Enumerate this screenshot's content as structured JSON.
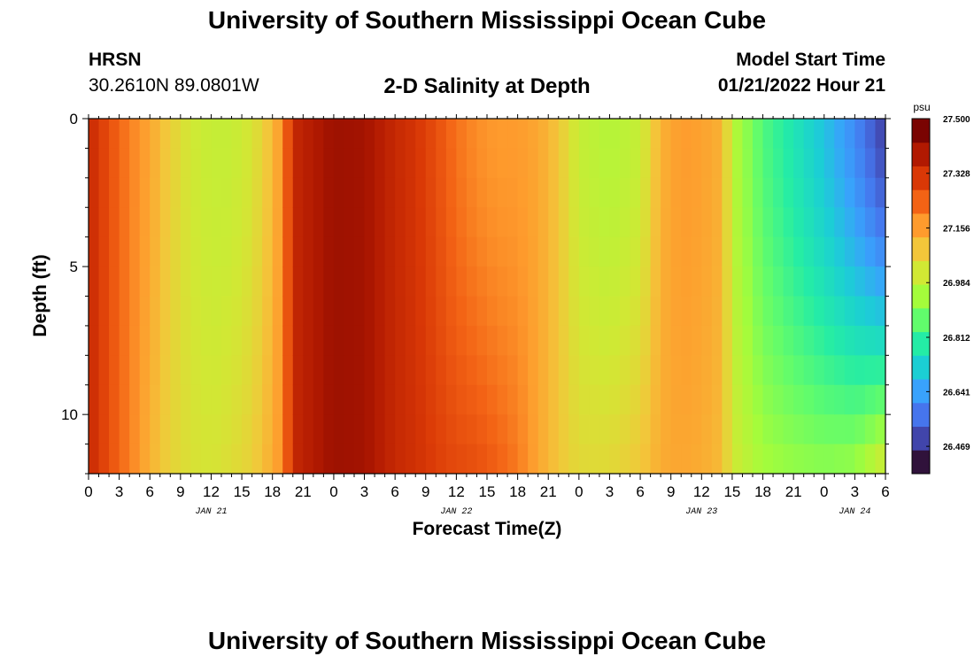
{
  "page_title": "University of Southern Mississippi Ocean Cube",
  "station": {
    "id": "HRSN",
    "coords": "30.2610N  89.0801W"
  },
  "model_start": {
    "label": "Model Start Time",
    "value": "01/21/2022 Hour 21"
  },
  "chart_data": {
    "type": "heatmap",
    "title": "2-D Salinity at Depth",
    "xlabel": "Forecast Time(Z)",
    "ylabel": "Depth (ft)",
    "x_tick_labels": [
      "0",
      "3",
      "6",
      "9",
      "12",
      "15",
      "18",
      "21",
      "0",
      "3",
      "6",
      "9",
      "12",
      "15",
      "18",
      "21",
      "0",
      "3",
      "6",
      "9",
      "12",
      "15",
      "18",
      "21",
      "0",
      "3",
      "6"
    ],
    "date_labels": [
      {
        "label": "JAN 21",
        "hour_index": 12
      },
      {
        "label": "JAN 22",
        "hour_index": 36
      },
      {
        "label": "JAN 23",
        "hour_index": 60
      },
      {
        "label": "JAN 24",
        "hour_index": 75
      }
    ],
    "hours_total": 78,
    "y_tick_labels": [
      "0",
      "5",
      "10"
    ],
    "ylim": [
      0,
      12
    ],
    "y_inverted": true,
    "colorbar": {
      "unit": "psu",
      "min": 26.383,
      "max": 27.5,
      "tick_labels": [
        "27.500",
        "27.328",
        "27.156",
        "26.984",
        "26.812",
        "26.641",
        "26.469"
      ],
      "colors": [
        "#30123b",
        "#4145ab",
        "#4675ed",
        "#39a2fc",
        "#1bcfd4",
        "#24eca6",
        "#61fc6c",
        "#a4fc3b",
        "#d1e834",
        "#f3c63a",
        "#fe9b2d",
        "#f36315",
        "#d93806",
        "#b11901",
        "#7a0402"
      ]
    },
    "columns": [
      {
        "h": 0,
        "top": 27.38,
        "bottom": 27.38
      },
      {
        "h": 1,
        "top": 27.34,
        "bottom": 27.34
      },
      {
        "h": 2,
        "top": 27.3,
        "bottom": 27.3
      },
      {
        "h": 3,
        "top": 27.26,
        "bottom": 27.26
      },
      {
        "h": 4,
        "top": 27.22,
        "bottom": 27.22
      },
      {
        "h": 5,
        "top": 27.19,
        "bottom": 27.18
      },
      {
        "h": 6,
        "top": 27.16,
        "bottom": 27.14
      },
      {
        "h": 8,
        "top": 27.08,
        "bottom": 27.07
      },
      {
        "h": 10,
        "top": 27.02,
        "bottom": 27.04
      },
      {
        "h": 12,
        "top": 27.0,
        "bottom": 27.03
      },
      {
        "h": 14,
        "top": 27.0,
        "bottom": 27.05
      },
      {
        "h": 16,
        "top": 27.03,
        "bottom": 27.08
      },
      {
        "h": 18,
        "top": 27.12,
        "bottom": 27.15
      },
      {
        "h": 19,
        "top": 27.2,
        "bottom": 27.2
      },
      {
        "h": 20,
        "top": 27.38,
        "bottom": 27.38
      },
      {
        "h": 21,
        "top": 27.4,
        "bottom": 27.4
      },
      {
        "h": 24,
        "top": 27.45,
        "bottom": 27.45
      },
      {
        "h": 27,
        "top": 27.44,
        "bottom": 27.44
      },
      {
        "h": 30,
        "top": 27.38,
        "bottom": 27.38
      },
      {
        "h": 32,
        "top": 27.35,
        "bottom": 27.36
      },
      {
        "h": 34,
        "top": 27.3,
        "bottom": 27.33
      },
      {
        "h": 36,
        "top": 27.24,
        "bottom": 27.31
      },
      {
        "h": 38,
        "top": 27.2,
        "bottom": 27.3
      },
      {
        "h": 40,
        "top": 27.18,
        "bottom": 27.27
      },
      {
        "h": 42,
        "top": 27.18,
        "bottom": 27.23
      },
      {
        "h": 44,
        "top": 27.16,
        "bottom": 27.16
      },
      {
        "h": 46,
        "top": 27.1,
        "bottom": 27.1
      },
      {
        "h": 48,
        "top": 27.0,
        "bottom": 27.06
      },
      {
        "h": 51,
        "top": 26.97,
        "bottom": 27.06
      },
      {
        "h": 54,
        "top": 27.0,
        "bottom": 27.1
      },
      {
        "h": 56,
        "top": 27.14,
        "bottom": 27.15
      },
      {
        "h": 58,
        "top": 27.18,
        "bottom": 27.16
      },
      {
        "h": 60,
        "top": 27.17,
        "bottom": 27.15
      },
      {
        "h": 62,
        "top": 27.14,
        "bottom": 27.12
      },
      {
        "h": 63,
        "top": 26.98,
        "bottom": 27.02
      },
      {
        "h": 66,
        "top": 26.84,
        "bottom": 26.95
      },
      {
        "h": 69,
        "top": 26.76,
        "bottom": 26.93
      },
      {
        "h": 72,
        "top": 26.68,
        "bottom": 26.92
      },
      {
        "h": 75,
        "top": 26.58,
        "bottom": 26.94
      },
      {
        "h": 78,
        "top": 26.45,
        "bottom": 27.05
      }
    ]
  }
}
